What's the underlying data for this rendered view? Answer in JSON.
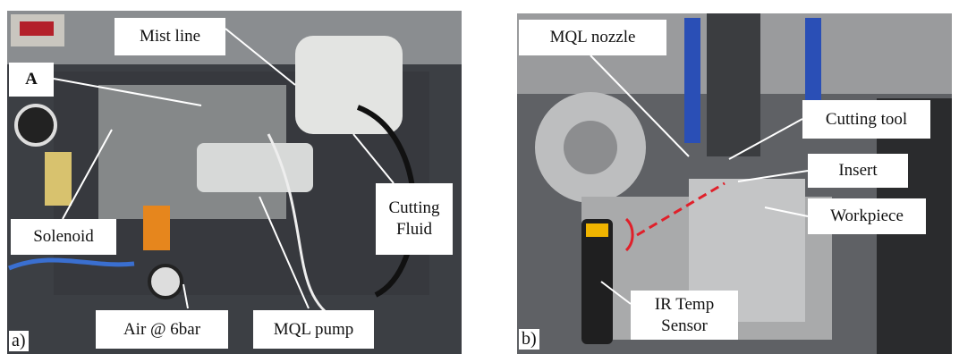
{
  "panels": [
    {
      "tag": "a)",
      "labels": [
        {
          "lines": [
            "Mist line"
          ]
        },
        {
          "lines": [
            "A"
          ]
        },
        {
          "lines": [
            "Solenoid"
          ]
        },
        {
          "lines": [
            "Cutting",
            "Fluid"
          ]
        },
        {
          "lines": [
            "Air @ 6bar"
          ]
        },
        {
          "lines": [
            "MQL pump"
          ]
        }
      ]
    },
    {
      "tag": "b)",
      "labels": [
        {
          "lines": [
            "MQL nozzle"
          ]
        },
        {
          "lines": [
            "Cutting tool"
          ]
        },
        {
          "lines": [
            "Insert"
          ]
        },
        {
          "lines": [
            "Workpiece"
          ]
        },
        {
          "lines": [
            "IR Temp",
            "Sensor"
          ]
        }
      ]
    }
  ]
}
